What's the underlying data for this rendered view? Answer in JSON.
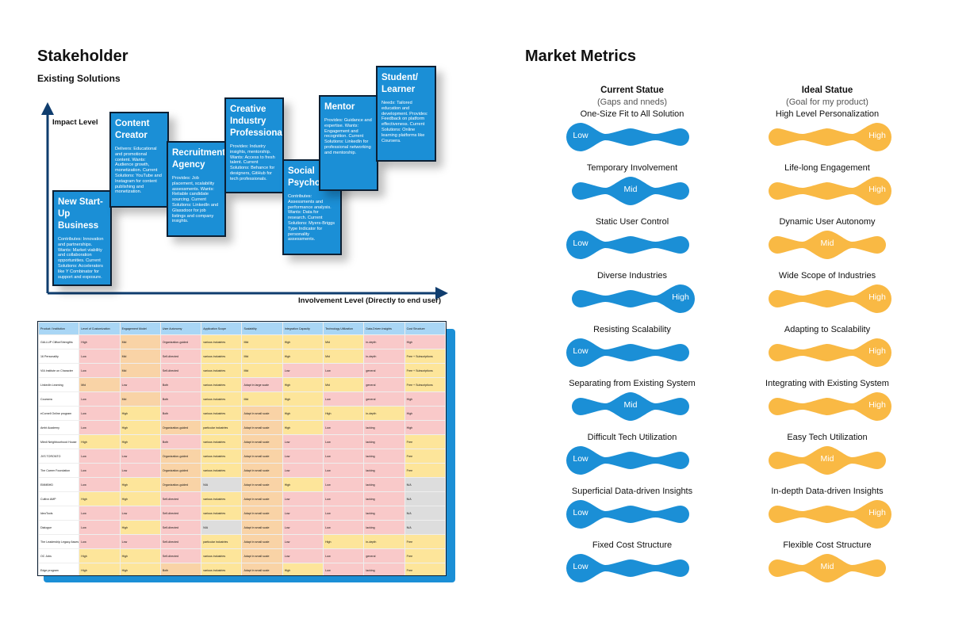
{
  "stakeholder": {
    "title": "Stakeholder",
    "subtitle": "Existing Solutions",
    "y_axis_label": "Impact Level",
    "x_axis_label": "Involvement Level (Directly to end user)",
    "cards": [
      {
        "title": "New Start-Up Business",
        "desc": "Contributes: Innovation and partnerships. Wants: Market viability and collaboration opportunities. Current Solutions: Accelerators like Y Combinator for support and exposure."
      },
      {
        "title": "Content Creator",
        "desc": "Delivers: Educational and promotional content. Wants: Audience growth, monetization. Current Solutions: YouTube and Instagram for content publishing and monetization."
      },
      {
        "title": "Recruitment Agency",
        "desc": "Provides: Job placement, scalability assessments. Wants: Reliable candidate sourcing. Current Solutions: LinkedIn and Glassdoor for job listings and company insights."
      },
      {
        "title": "Creative Industry Professional",
        "desc": "Provides: Industry insights, mentorship. Wants: Access to fresh talent. Current Solutions: Behance for designers, GitHub for tech professionals."
      },
      {
        "title": "Social Psychologist",
        "desc": "Contributes: Assessments and performance analysis. Wants: Data for research. Current Solutions: Myers-Briggs Type Indicator for personality assessments."
      },
      {
        "title": "Mentor",
        "desc": "Provides: Guidance and expertise. Wants: Engagement and recognition. Current Solutions: LinkedIn for professional networking and mentorship."
      },
      {
        "title": "Student/ Learner",
        "desc": "Needs: Tailored education and development. Provides: Feedback on platform effectiveness. Current Solutions: Online learning platforms like Coursera."
      }
    ]
  },
  "table": {
    "headers": [
      "Product / Institution",
      "Level of Customization",
      "Engagement Model",
      "User Autonomy",
      "Application Scope",
      "Scalability",
      "Integration Capacity",
      "Technology Utilization",
      "Data-Driven Insights",
      "Cost Structure"
    ],
    "rows": [
      [
        "GALLUP CliftonStrengths",
        "High",
        "Mid",
        "Organization-guided",
        "various industries",
        "Mid",
        "High",
        "Mid",
        "in-depth",
        "High"
      ],
      [
        "16 Personality",
        "Low",
        "Mid",
        "Self-directed",
        "various industries",
        "Mid",
        "High",
        "Mid",
        "in-depth",
        "Free + Subscriptions"
      ],
      [
        "VIA Institute on Character",
        "Low",
        "Mid",
        "Self-directed",
        "various industries",
        "Mid",
        "Low",
        "Low",
        "general",
        "Free + Subscriptions"
      ],
      [
        "LinkedIn Learning",
        "Mid",
        "Low",
        "Both",
        "various industries",
        "Adapt in large scale",
        "High",
        "Mid",
        "general",
        "Free + Subscriptions"
      ],
      [
        "Coursera",
        "Low",
        "Mid",
        "Both",
        "various industries",
        "Mid",
        "High",
        "Low",
        "general",
        "High"
      ],
      [
        "eCornell Online program",
        "Low",
        "High",
        "Both",
        "various industries",
        "Adapt in small scale",
        "High",
        "High",
        "in-depth",
        "High"
      ],
      [
        "Ambi Academy",
        "Low",
        "High",
        "Organization-guided",
        "particular industries",
        "Adapt in small scale",
        "High",
        "Low",
        "lacking",
        "High"
      ],
      [
        "Miedi Neighbourhood House",
        "High",
        "High",
        "Both",
        "various industries",
        "Adapt in small scale",
        "Low",
        "Low",
        "lacking",
        "Free"
      ],
      [
        "JVS TORONTO",
        "Low",
        "Low",
        "Organization-guided",
        "various industries",
        "Adapt in small scale",
        "Low",
        "Low",
        "lacking",
        "Free"
      ],
      [
        "The Career Foundation",
        "Low",
        "Low",
        "Organization-guided",
        "various industries",
        "Adapt in small scale",
        "Low",
        "Low",
        "lacking",
        "Free"
      ],
      [
        "EMMBHD",
        "Low",
        "High",
        "Organization-guided",
        "N/A",
        "Adapt in small scale",
        "High",
        "Low",
        "lacking",
        "N/A"
      ],
      [
        "Cultivn AMP",
        "High",
        "High",
        "Self-directed",
        "various industries",
        "Adapt in small scale",
        "Low",
        "Low",
        "lacking",
        "N/A"
      ],
      [
        "IdeoTools",
        "Low",
        "Low",
        "Self-directed",
        "various industries",
        "Adapt in small scale",
        "Low",
        "Low",
        "lacking",
        "N/A"
      ],
      [
        "Dialogue",
        "Low",
        "High",
        "Self-directed",
        "N/A",
        "Adapt in small scale",
        "Low",
        "Low",
        "lacking",
        "N/A"
      ],
      [
        "The Leadership Legacy Assessment",
        "Low",
        "Low",
        "Self-directed",
        "particular industries",
        "Adapt in small scale",
        "Low",
        "High",
        "in-depth",
        "Free"
      ],
      [
        "OC Jobs",
        "High",
        "High",
        "Self-directed",
        "various industries",
        "Adapt in small scale",
        "Low",
        "Low",
        "general",
        "Free"
      ],
      [
        "Edge program",
        "High",
        "High",
        "Both",
        "various industries",
        "Adapt in small scale",
        "High",
        "Low",
        "lacking",
        "Free"
      ]
    ],
    "colors": [
      [
        "w",
        "r",
        "o",
        "r",
        "y",
        "y",
        "y",
        "y",
        "r",
        "r"
      ],
      [
        "w",
        "r",
        "o",
        "r",
        "y",
        "y",
        "y",
        "y",
        "r",
        "y"
      ],
      [
        "w",
        "r",
        "o",
        "r",
        "y",
        "y",
        "r",
        "r",
        "r",
        "y"
      ],
      [
        "w",
        "o",
        "r",
        "r",
        "y",
        "r",
        "y",
        "y",
        "r",
        "y"
      ],
      [
        "w",
        "r",
        "o",
        "r",
        "y",
        "y",
        "y",
        "r",
        "r",
        "r"
      ],
      [
        "w",
        "r",
        "y",
        "r",
        "y",
        "o",
        "y",
        "y",
        "y",
        "r"
      ],
      [
        "w",
        "r",
        "y",
        "o",
        "y",
        "o",
        "y",
        "r",
        "r",
        "r"
      ],
      [
        "w",
        "y",
        "y",
        "r",
        "y",
        "o",
        "r",
        "r",
        "r",
        "y"
      ],
      [
        "w",
        "r",
        "r",
        "o",
        "y",
        "o",
        "r",
        "r",
        "r",
        "y"
      ],
      [
        "w",
        "r",
        "r",
        "o",
        "y",
        "o",
        "r",
        "r",
        "r",
        "y"
      ],
      [
        "w",
        "r",
        "y",
        "o",
        "g",
        "o",
        "y",
        "r",
        "r",
        "g"
      ],
      [
        "w",
        "y",
        "y",
        "r",
        "y",
        "o",
        "r",
        "r",
        "r",
        "g"
      ],
      [
        "w",
        "r",
        "r",
        "r",
        "y",
        "o",
        "r",
        "r",
        "r",
        "g"
      ],
      [
        "w",
        "r",
        "y",
        "r",
        "g",
        "o",
        "r",
        "r",
        "r",
        "g"
      ],
      [
        "w",
        "r",
        "r",
        "r",
        "y",
        "o",
        "r",
        "y",
        "y",
        "y"
      ],
      [
        "w",
        "y",
        "y",
        "r",
        "y",
        "o",
        "r",
        "r",
        "r",
        "y"
      ],
      [
        "w",
        "y",
        "y",
        "o",
        "y",
        "o",
        "y",
        "r",
        "r",
        "y"
      ]
    ]
  },
  "metrics": {
    "title": "Market Metrics",
    "current_heading": "Current Statue",
    "current_sub": "(Gaps and nneds)",
    "ideal_heading": "Ideal Statue",
    "ideal_sub": "(Goal for my product)",
    "current_color": "#1b8fd6",
    "ideal_color": "#f9b944",
    "rows": [
      {
        "current": "One-Size Fit to All Solution",
        "current_level": "Low",
        "ideal": "High Level Personalization",
        "ideal_level": "High"
      },
      {
        "current": "Temporary Involvement",
        "current_level": "Mid",
        "ideal": "Life-long Engagement",
        "ideal_level": "High"
      },
      {
        "current": "Static User Control",
        "current_level": "Low",
        "ideal": "Dynamic User Autonomy",
        "ideal_level": "Mid"
      },
      {
        "current": "Diverse Industries",
        "current_level": "High",
        "ideal": "Wide Scope of Industries",
        "ideal_level": "High"
      },
      {
        "current": "Resisting Scalability",
        "current_level": "Low",
        "ideal": "Adapting to Scalability",
        "ideal_level": "High"
      },
      {
        "current": "Separating from Existing System",
        "current_level": "Mid",
        "ideal": "Integrating with Existing System",
        "ideal_level": "High"
      },
      {
        "current": "Difficult Tech Utilization",
        "current_level": "Low",
        "ideal": "Easy Tech Utilization",
        "ideal_level": "Mid"
      },
      {
        "current": "Superficial Data-driven Insights",
        "current_level": "Low",
        "ideal": "In-depth Data-driven Insights",
        "ideal_level": "High"
      },
      {
        "current": "Fixed Cost Structure",
        "current_level": "Low",
        "ideal": "Flexible Cost Structure",
        "ideal_level": "Mid"
      }
    ]
  }
}
